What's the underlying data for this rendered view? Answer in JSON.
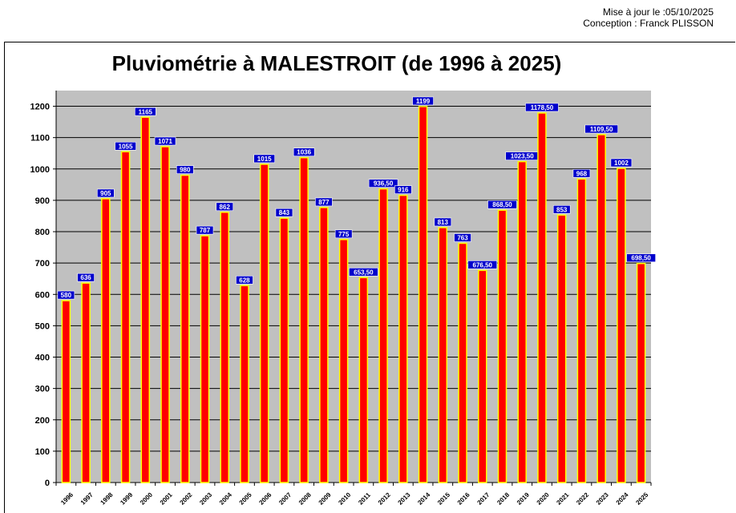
{
  "header": {
    "update_line": "Mise à jour le :05/10/2025",
    "author_line": "Conception : Franck PLISSON"
  },
  "colors": {
    "plot_bg": "#c0c0c0",
    "bar_fill": "#ff0000",
    "bar_border": "#ffff00",
    "label_bg": "#0000cc",
    "label_text": "#ffffff"
  },
  "chart_data": {
    "type": "bar",
    "title": "Pluviométrie à MALESTROIT (de 1996 à 2025)",
    "xlabel": "",
    "ylabel": "",
    "ylim": [
      0,
      1250
    ],
    "yticks": [
      0,
      100,
      200,
      300,
      400,
      500,
      600,
      700,
      800,
      900,
      1000,
      1100,
      1200
    ],
    "grid": true,
    "categories": [
      "1996",
      "1997",
      "1998",
      "1999",
      "2000",
      "2001",
      "2002",
      "2003",
      "2004",
      "2005",
      "2006",
      "2007",
      "2008",
      "2009",
      "2010",
      "2011",
      "2012",
      "2013",
      "2014",
      "2015",
      "2016",
      "2017",
      "2018",
      "2019",
      "2020",
      "2021",
      "2022",
      "2023",
      "2024",
      "2025"
    ],
    "values": [
      580,
      636,
      905,
      1055,
      1165,
      1071,
      980,
      787,
      862,
      628,
      1015,
      843,
      1036,
      877,
      775,
      653.5,
      936.5,
      916,
      1199,
      813,
      763,
      676.5,
      868.5,
      1023.5,
      1178.5,
      853,
      968,
      1109.5,
      1002,
      698.5
    ],
    "data_labels": [
      "580",
      "636",
      "905",
      "1055",
      "1165",
      "1071",
      "980",
      "787",
      "862",
      "628",
      "1015",
      "843",
      "1036",
      "877",
      "775",
      "653,50",
      "936,50",
      "916",
      "1199",
      "813",
      "763",
      "676,50",
      "868,50",
      "1023,50",
      "1178,50",
      "853",
      "968",
      "1109,50",
      "1002",
      "698,50"
    ]
  }
}
